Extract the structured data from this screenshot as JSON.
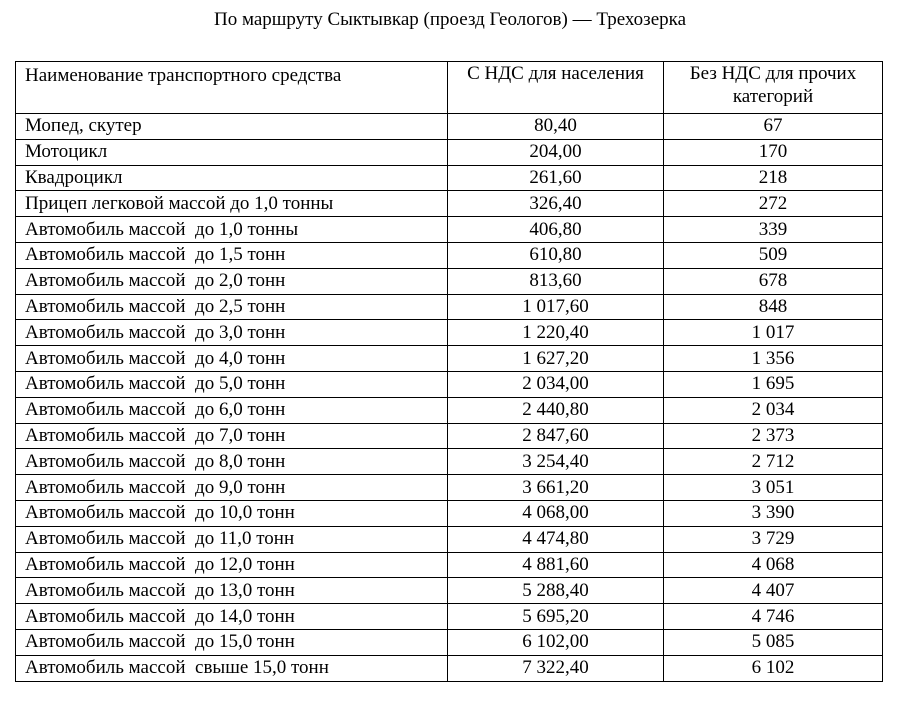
{
  "title": "По маршруту Сыктывкар (проезд Геологов) — Трехозерка",
  "table": {
    "headers": [
      "Наименование транспортного средства",
      "С НДС для населения",
      "Без НДС для прочих категорий"
    ],
    "rows": [
      [
        "Мопед, скутер",
        "80,40",
        "67"
      ],
      [
        "Мотоцикл",
        "204,00",
        "170"
      ],
      [
        "Квадроцикл",
        "261,60",
        "218"
      ],
      [
        "Прицеп легковой массой до 1,0 тонны",
        "326,40",
        "272"
      ],
      [
        "Автомобиль массой  до 1,0 тонны",
        "406,80",
        "339"
      ],
      [
        "Автомобиль массой  до 1,5 тонн",
        "610,80",
        "509"
      ],
      [
        "Автомобиль массой  до 2,0 тонн",
        "813,60",
        "678"
      ],
      [
        "Автомобиль массой  до 2,5 тонн",
        "1 017,60",
        "848"
      ],
      [
        "Автомобиль массой  до 3,0 тонн",
        "1 220,40",
        "1 017"
      ],
      [
        "Автомобиль массой  до 4,0 тонн",
        "1 627,20",
        "1 356"
      ],
      [
        "Автомобиль массой  до 5,0 тонн",
        "2 034,00",
        "1 695"
      ],
      [
        "Автомобиль массой  до 6,0 тонн",
        "2 440,80",
        "2 034"
      ],
      [
        "Автомобиль массой  до 7,0 тонн",
        "2 847,60",
        "2 373"
      ],
      [
        "Автомобиль массой  до 8,0 тонн",
        "3 254,40",
        "2 712"
      ],
      [
        "Автомобиль массой  до 9,0 тонн",
        "3 661,20",
        "3 051"
      ],
      [
        "Автомобиль массой  до 10,0 тонн",
        "4 068,00",
        "3 390"
      ],
      [
        "Автомобиль массой  до 11,0 тонн",
        "4 474,80",
        "3 729"
      ],
      [
        "Автомобиль массой  до 12,0 тонн",
        "4 881,60",
        "4 068"
      ],
      [
        "Автомобиль массой  до 13,0 тонн",
        "5 288,40",
        "4 407"
      ],
      [
        "Автомобиль массой  до 14,0 тонн",
        "5 695,20",
        "4 746"
      ],
      [
        "Автомобиль массой  до 15,0 тонн",
        "6 102,00",
        "5 085"
      ],
      [
        "Автомобиль массой  свыше 15,0 тонн",
        "7 322,40",
        "6 102"
      ]
    ]
  }
}
